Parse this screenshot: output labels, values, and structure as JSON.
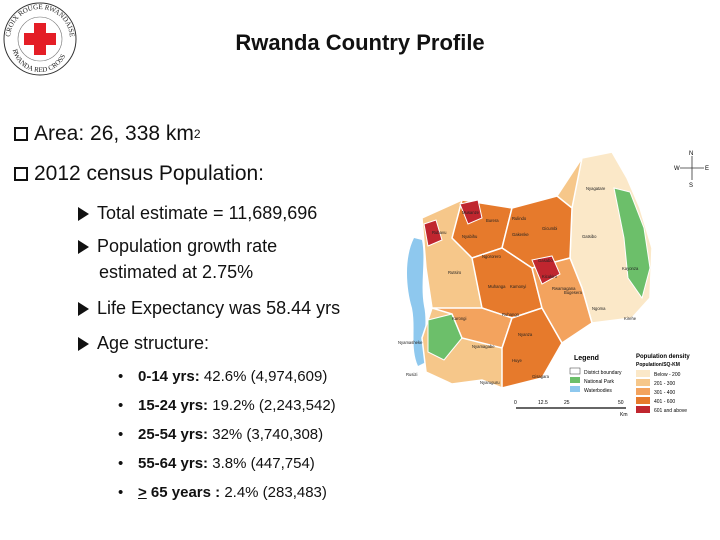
{
  "logo": {
    "top_text": "CROIX ROUGE RWANDAISE",
    "bottom_text": "RWANDA RED CROSS",
    "cross_color": "#e41e26"
  },
  "title": "Rwanda Country Profile",
  "area": {
    "label": "Area: 26, 338  km",
    "sup": "2"
  },
  "census_label": "2012 census Population:",
  "sub": {
    "total": "Total estimate = 11,689,696",
    "growth_line1": "Population growth rate",
    "growth_line2": "estimated at 2.75%",
    "life": "Life Expectancy was 58.44 yrs",
    "age": "Age structure:"
  },
  "age_items": [
    {
      "label": "0-14 yrs:",
      "value": "42.6% (4,974,609)"
    },
    {
      "label": "15-24 yrs:",
      "value": "19.2% (2,243,542)"
    },
    {
      "label": "25-54 yrs:",
      "value": "32% (3,740,308)"
    },
    {
      "label": "55-64 yrs:",
      "value": "3.8% (447,754)"
    },
    {
      "ge": ">",
      "label": " 65 years :",
      "value": "2.4% (283,483)"
    }
  ],
  "map": {
    "legend_title": "Legend",
    "legend_items": [
      "District boundary",
      "National Park",
      "Waterbodies"
    ],
    "density_title": "Population density",
    "density_unit": "Population/SQ-KM",
    "density_items": [
      "Below - 200",
      "201 - 300",
      "301 - 400",
      "401 - 600",
      "601 and above"
    ],
    "scale": [
      "0",
      "12.5",
      "25",
      "50"
    ],
    "scale_unit": "Km",
    "compass": [
      "N",
      "S",
      "E",
      "W"
    ],
    "colors": {
      "below200": "#fbe8c8",
      "c201": "#f6c78a",
      "c301": "#f3a35e",
      "c401": "#e67a2c",
      "c601": "#c0262f",
      "park": "#6cbf6a",
      "water": "#8ec8ee"
    },
    "districts": [
      "Musanze",
      "Nyabihu",
      "Gakenke",
      "Gicumbi",
      "Rubavu",
      "Ngororero",
      "Muhanga",
      "Kamonyi",
      "Gasabo",
      "Kicukiro",
      "Rwamagana",
      "Bugesera",
      "Ngoma",
      "Kirehe",
      "Kayonza",
      "Gatsibo",
      "Nyagatare",
      "Karongi",
      "Rutsiro",
      "Nyamasheke",
      "Rusizi",
      "Nyamagabe",
      "Nyaruguru",
      "Huye",
      "Gisagara",
      "Nyanza",
      "Ruhango",
      "Burera",
      "Rulindo"
    ]
  }
}
